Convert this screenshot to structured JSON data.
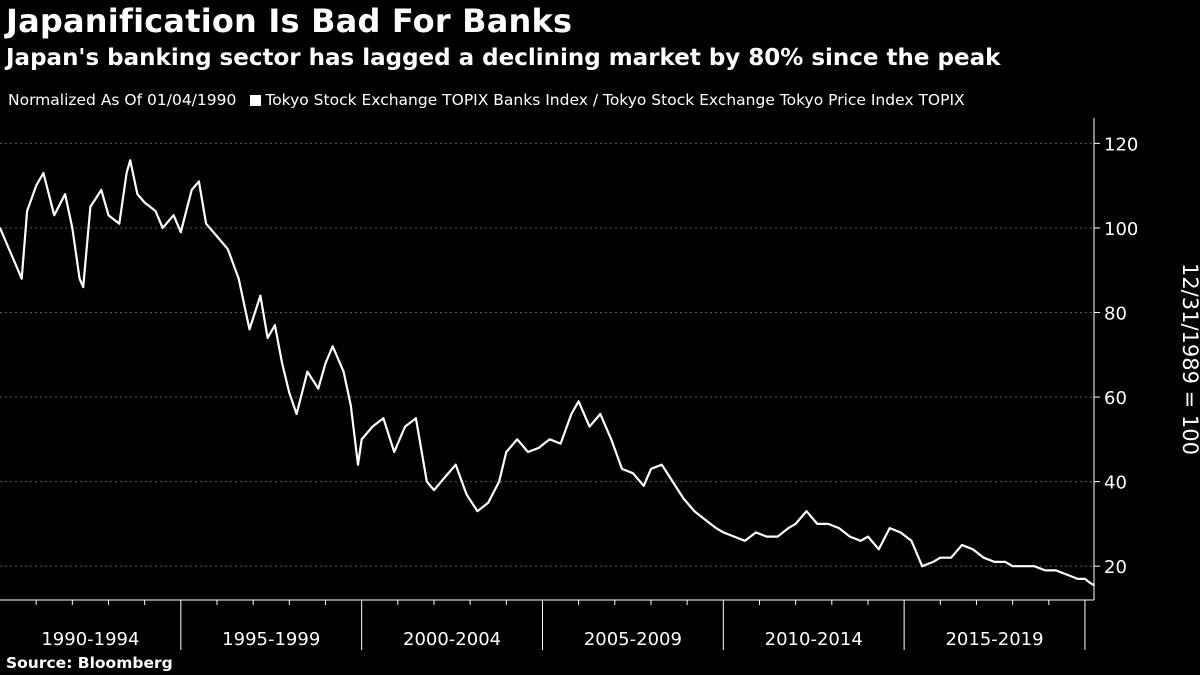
{
  "header": {
    "title": "Japanification Is Bad For Banks",
    "subtitle": "Japan's banking sector has lagged a declining market by 80% since the peak",
    "normalization_note": "Normalized As Of 01/04/1990",
    "legend_label": "Tokyo Stock Exchange TOPIX Banks Index / Tokyo Stock Exchange Tokyo Price Index TOPIX"
  },
  "footer": {
    "source": "Source: Bloomberg"
  },
  "colors": {
    "background": "#000000",
    "line": "#ffffff",
    "grid": "#5a5a5a"
  },
  "chart_data": {
    "type": "line",
    "title": "Japanification Is Bad For Banks",
    "subtitle": "Japan's banking sector has lagged a declining market by 80% since the peak",
    "ylabel": "12/31/1989 = 100",
    "xlabel": "",
    "ylim": [
      12,
      126
    ],
    "xlim": [
      1990.0,
      2020.25
    ],
    "yticks": [
      20,
      40,
      60,
      80,
      100,
      120
    ],
    "xtick_labels": [
      "1990-1994",
      "1995-1999",
      "2000-2004",
      "2005-2009",
      "2010-2014",
      "2015-2019"
    ],
    "grid": "horizontal dashed",
    "legend": "top-left",
    "series": [
      {
        "name": "Tokyo Stock Exchange TOPIX Banks Index / Tokyo Stock Exchange Tokyo Price Index TOPIX",
        "x": [
          1990.0,
          1990.2,
          1990.4,
          1990.6,
          1990.75,
          1991.0,
          1991.2,
          1991.5,
          1991.8,
          1992.0,
          1992.2,
          1992.3,
          1992.5,
          1992.8,
          1993.0,
          1993.3,
          1993.5,
          1993.6,
          1993.8,
          1994.0,
          1994.3,
          1994.5,
          1994.8,
          1995.0,
          1995.3,
          1995.5,
          1995.7,
          1996.0,
          1996.3,
          1996.6,
          1996.9,
          1997.2,
          1997.4,
          1997.6,
          1997.8,
          1998.0,
          1998.2,
          1998.5,
          1998.8,
          1999.0,
          1999.2,
          1999.5,
          1999.7,
          1999.9,
          2000.0,
          2000.3,
          2000.6,
          2000.9,
          2001.2,
          2001.5,
          2001.8,
          2002.0,
          2002.3,
          2002.6,
          2002.9,
          2003.2,
          2003.5,
          2003.8,
          2004.0,
          2004.3,
          2004.6,
          2004.9,
          2005.2,
          2005.5,
          2005.8,
          2006.0,
          2006.3,
          2006.6,
          2006.9,
          2007.2,
          2007.5,
          2007.8,
          2008.0,
          2008.3,
          2008.6,
          2008.9,
          2009.2,
          2009.5,
          2009.8,
          2010.0,
          2010.3,
          2010.6,
          2010.9,
          2011.2,
          2011.5,
          2011.8,
          2012.0,
          2012.3,
          2012.6,
          2012.9,
          2013.2,
          2013.5,
          2013.8,
          2014.0,
          2014.3,
          2014.6,
          2014.9,
          2015.2,
          2015.5,
          2015.8,
          2016.0,
          2016.3,
          2016.6,
          2016.9,
          2017.2,
          2017.5,
          2017.8,
          2018.0,
          2018.3,
          2018.6,
          2018.9,
          2019.2,
          2019.5,
          2019.8,
          2020.0,
          2020.15,
          2020.25
        ],
        "values": [
          100,
          96,
          92,
          88,
          104,
          110,
          113,
          103,
          108,
          100,
          88,
          86,
          105,
          109,
          103,
          101,
          113,
          116,
          108,
          106,
          104,
          100,
          103,
          99,
          109,
          111,
          101,
          98,
          95,
          88,
          76,
          84,
          74,
          77,
          68,
          61,
          56,
          66,
          62,
          68,
          72,
          66,
          58,
          44,
          50,
          53,
          55,
          47,
          53,
          55,
          40,
          38,
          41,
          44,
          37,
          33,
          35,
          40,
          47,
          50,
          47,
          48,
          50,
          49,
          56,
          59,
          53,
          56,
          50,
          43,
          42,
          39,
          43,
          44,
          40,
          36,
          33,
          31,
          29,
          28,
          27,
          26,
          28,
          27,
          27,
          29,
          30,
          33,
          30,
          30,
          29,
          27,
          26,
          27,
          24,
          29,
          28,
          26,
          20,
          21,
          22,
          22,
          25,
          24,
          22,
          21,
          21,
          20,
          20,
          20,
          19,
          19,
          18,
          17,
          17,
          16,
          15.5
        ]
      }
    ]
  }
}
